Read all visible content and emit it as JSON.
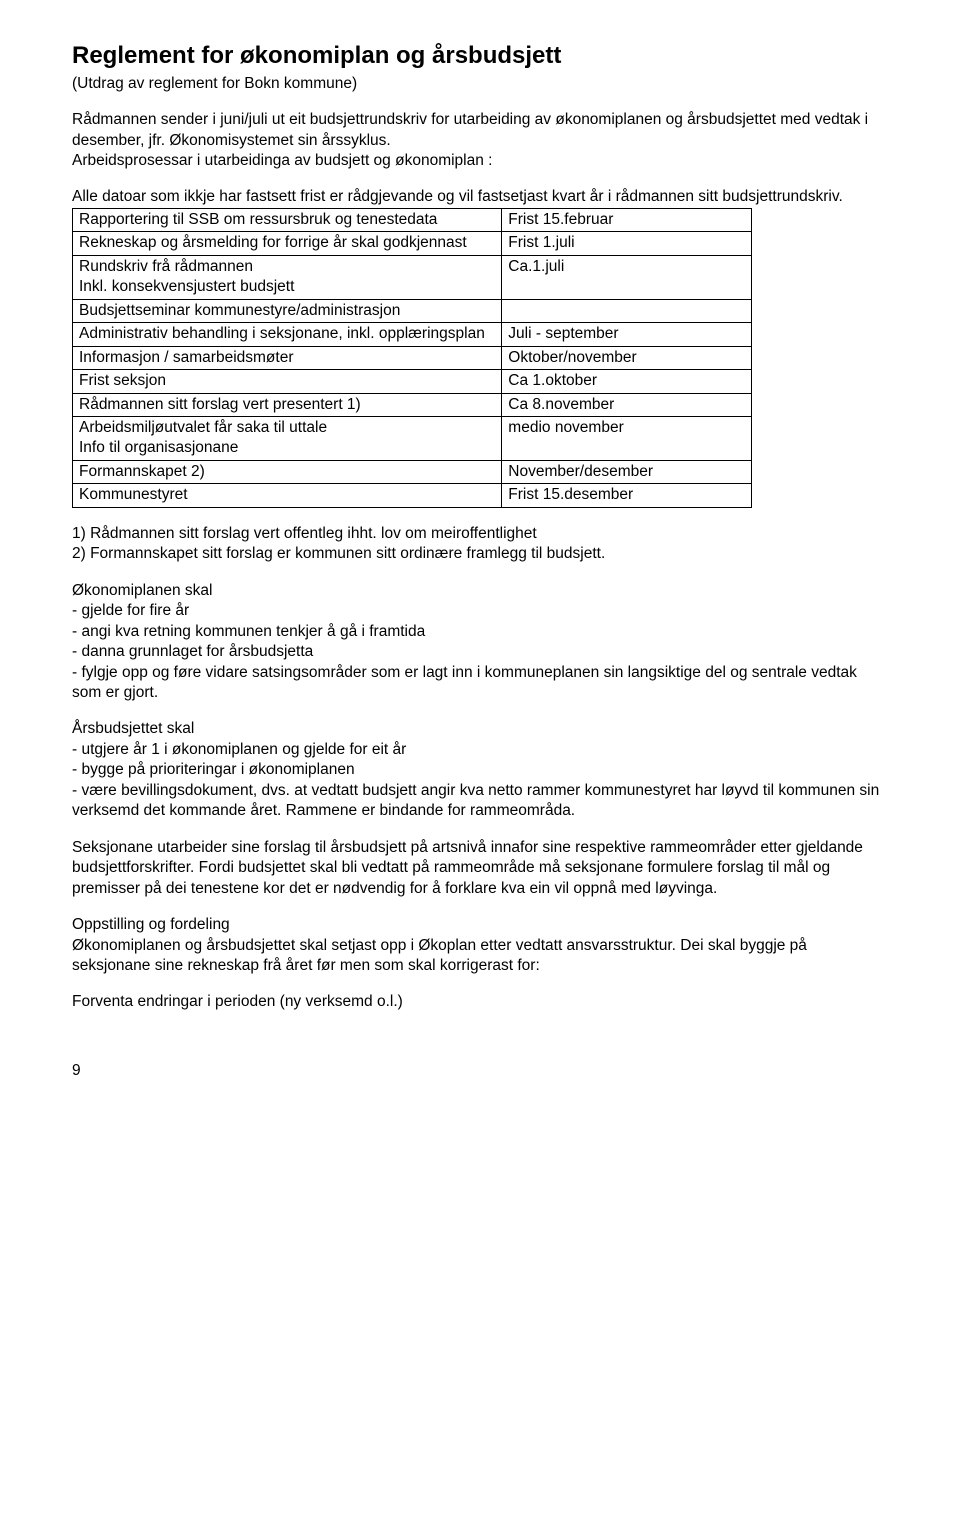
{
  "title": "Reglement for økonomiplan og årsbudsjett",
  "subtitle": "(Utdrag av reglement for Bokn kommune)",
  "intro1": "Rådmannen sender i juni/juli ut eit budsjettrundskriv for utarbeiding av økonomiplanen og årsbudsjettet med vedtak i desember, jfr. Økonomisystemet sin årssyklus.",
  "intro2": "Arbeidsprosessar i utarbeidinga av budsjett og økonomiplan :",
  "intro3": "Alle datoar som ikkje har fastsett frist er rådgjevande og vil fastsetjast  kvart år i rådmannen sitt budsjettrundskriv.",
  "table": {
    "rows": [
      {
        "c1": "Rapportering til SSB om ressursbruk og tenestedata",
        "c2": "Frist 15.februar"
      },
      {
        "c1": "Rekneskap og årsmelding for forrige år skal godkjennast",
        "c2": "Frist  1.juli"
      },
      {
        "c1": "Rundskriv frå rådmannen\nInkl. konsekvensjustert budsjett",
        "c2": "Ca.1.juli"
      },
      {
        "c1": "Budsjettseminar kommunestyre/administrasjon",
        "c2": ""
      },
      {
        "c1": "Administrativ behandling i seksjonane, inkl. opplæringsplan",
        "c2": "Juli - september"
      },
      {
        "c1": "Informasjon / samarbeidsmøter",
        "c2": "Oktober/november"
      },
      {
        "c1": "Frist seksjon",
        "c2": "Ca 1.oktober"
      },
      {
        "c1": "Rådmannen sitt forslag vert presentert 1)",
        "c2": "Ca 8.november"
      },
      {
        "c1": "Arbeidsmiljøutvalet får saka til uttale\nInfo til organisasjonane",
        "c2": "medio november"
      },
      {
        "c1": "Formannskapet 2)",
        "c2": "November/desember"
      },
      {
        "c1": "Kommunestyret",
        "c2": "Frist 15.desember"
      }
    ]
  },
  "note1": "1) Rådmannen sitt forslag vert offentleg ihht. lov om meiroffentlighet",
  "note2": "2) Formannskapet sitt forslag er kommunen sitt ordinære framlegg til budsjett.",
  "okoplan_head": "Økonomiplanen skal",
  "okoplan_items": [
    "- gjelde for fire år",
    "- angi kva retning kommunen tenkjer å gå i framtida",
    "- danna grunnlaget for årsbudsjetta",
    "- fylgje opp og føre vidare satsingsområder som er lagt inn i kommuneplanen sin langsiktige del  og sentrale vedtak som er gjort."
  ],
  "arsbud_head": "Årsbudsjettet skal",
  "arsbud_items": [
    "- utgjere år 1 i økonomiplanen og gjelde for eit år",
    "- bygge på prioriteringar i økonomiplanen",
    "- være bevillingsdokument, dvs. at vedtatt budsjett angir kva netto rammer  kommunestyret har løyvd til kommunen sin verksemd det kommande året. Rammene er  bindande for rammeområda."
  ],
  "para_seksjon": "Seksjonane utarbeider sine forslag til årsbudsjett på artsnivå innafor sine respektive rammeområder  etter gjeldande budsjettforskrifter. Fordi budsjettet skal bli vedtatt på rammeområde må seksjonane formulere forslag til mål og premisser på dei tenestene kor det er nødvendig for å forklare kva ein vil oppnå med løyvinga.",
  "oppstilling_head": "Oppstilling og fordeling",
  "oppstilling_body": "Økonomiplanen og årsbudsjettet skal setjast opp i Økoplan etter vedtatt ansvarsstruktur. Dei skal byggje på seksjonane sine rekneskap frå året før men som skal korrigerast for:",
  "forventa": "Forventa endringar i perioden (ny verksemd o.l.)",
  "pagenum": "9"
}
